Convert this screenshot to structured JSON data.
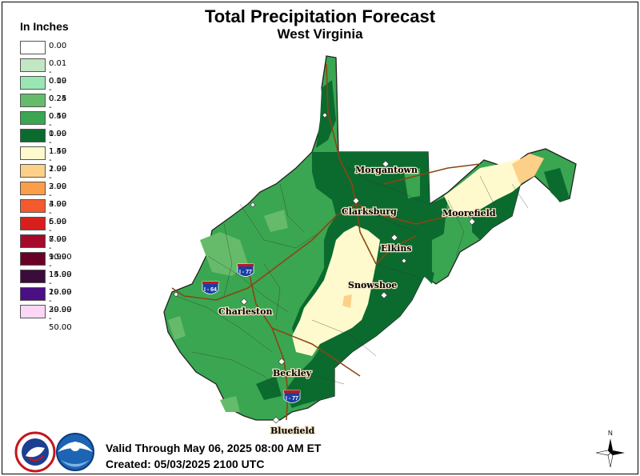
{
  "title": "Total Precipitation Forecast",
  "subtitle": "West Virginia",
  "legend_title": "In Inches",
  "legend": [
    {
      "label": "0.00",
      "color": "#ffffff"
    },
    {
      "label": "0.01 - 0.09",
      "color": "#c3e6c3"
    },
    {
      "label": "0.10 - 0.24",
      "color": "#99e6b3"
    },
    {
      "label": "0.25 - 0.49",
      "color": "#66bb6a"
    },
    {
      "label": "0.50 - 0.99",
      "color": "#3aa651"
    },
    {
      "label": "1.00 - 1.49",
      "color": "#0b6b2e"
    },
    {
      "label": "1.50 - 1.99",
      "color": "#fffacd"
    },
    {
      "label": "2.00 - 2.99",
      "color": "#fdd089"
    },
    {
      "label": "3.00 - 3.99",
      "color": "#fb9e4a"
    },
    {
      "label": "4.00 - 5.99",
      "color": "#f35a2e"
    },
    {
      "label": "6.00 - 7.99",
      "color": "#d7201e"
    },
    {
      "label": "8.00 - 9.99",
      "color": "#a50a2a"
    },
    {
      "label": "10.00 - 14.99",
      "color": "#6b0026"
    },
    {
      "label": "15.00 - 19.99",
      "color": "#3b0c39"
    },
    {
      "label": "20.00 - 29.99",
      "color": "#4a0f84"
    },
    {
      "label": "30.00 - 50.00",
      "color": "#fbd7f5"
    }
  ],
  "cities": [
    "Morgantown",
    "Clarksburg",
    "Moorefield",
    "Elkins",
    "Snowshoe",
    "Charleston",
    "Beckley",
    "Bluefield"
  ],
  "highways": [
    "I - 77",
    "I - 64",
    "I - 77"
  ],
  "valid_through": "Valid Through May 06, 2025 08:00 AM ET",
  "created": "Created: 05/03/2025 2100 UTC",
  "compass_label": "N",
  "logos": [
    "nws-logo",
    "noaa-logo"
  ]
}
